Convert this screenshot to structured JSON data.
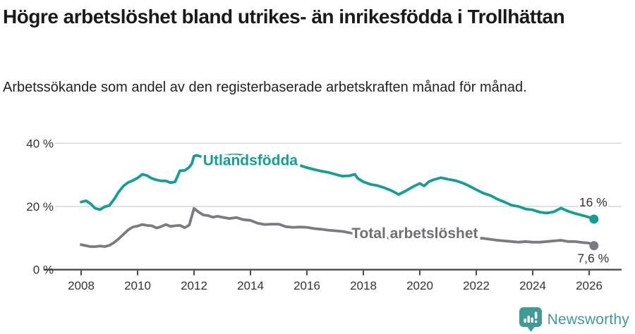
{
  "header": {
    "title": "Högre arbetslöshet bland utrikes- än inrikesfödda i Trollhättan",
    "subtitle": "Arbetssökande som andel av den registerbaserade arbetskraften månad för månad."
  },
  "footer": {
    "brand": "Newsworthy"
  },
  "colors": {
    "teal": "#10a195",
    "gray": "#7a7a80",
    "gray_label": "#6f6f75",
    "grid": "#d9d9d9",
    "axis": "#4b4b4b",
    "text": "#333333",
    "brand": "#3f9b96"
  },
  "chart_data": {
    "type": "line",
    "title": "Högre arbetslöshet bland utrikes- än inrikesfödda i Trollhättan",
    "subtitle": "Arbetssökande som andel av den registerbaserade arbetskraften månad för månad.",
    "xlabel": "",
    "ylabel": "",
    "unit": "%",
    "grid": "horizontal",
    "x_axis": {
      "range": [
        2007.95,
        2026.3
      ],
      "ticks": [
        2008,
        2010,
        2012,
        2014,
        2016,
        2018,
        2020,
        2022,
        2024,
        2026
      ]
    },
    "y_axis": {
      "range": [
        0,
        44
      ],
      "ticks": [
        0,
        20,
        40
      ],
      "labels": [
        "0 %",
        "20 %",
        "40 %"
      ]
    },
    "series": [
      {
        "name": "Utlandsfödda",
        "color": "#10a195",
        "label_color": "#10a195",
        "label_at": [
          2012.32,
          33.0
        ],
        "end_label": "16 %",
        "end_value": 16,
        "annotation_position": "above",
        "points": [
          [
            2008.0,
            21.4
          ],
          [
            2008.17,
            21.8
          ],
          [
            2008.33,
            20.9
          ],
          [
            2008.5,
            19.4
          ],
          [
            2008.67,
            19.0
          ],
          [
            2008.83,
            19.9
          ],
          [
            2009.0,
            20.3
          ],
          [
            2009.17,
            22.3
          ],
          [
            2009.33,
            24.6
          ],
          [
            2009.5,
            26.5
          ],
          [
            2009.67,
            27.6
          ],
          [
            2009.83,
            28.2
          ],
          [
            2010.0,
            29.0
          ],
          [
            2010.17,
            30.2
          ],
          [
            2010.33,
            29.8
          ],
          [
            2010.5,
            28.9
          ],
          [
            2010.67,
            28.4
          ],
          [
            2010.83,
            28.1
          ],
          [
            2011.0,
            28.1
          ],
          [
            2011.17,
            27.5
          ],
          [
            2011.33,
            27.8
          ],
          [
            2011.5,
            31.3
          ],
          [
            2011.67,
            31.4
          ],
          [
            2011.83,
            32.4
          ],
          [
            2011.92,
            33.5
          ],
          [
            2012.0,
            35.9
          ],
          [
            2012.08,
            36.2
          ],
          [
            2012.25,
            35.8
          ],
          [
            2012.5,
            35.3
          ],
          [
            2012.75,
            35.6
          ],
          [
            2013.0,
            35.9
          ],
          [
            2013.25,
            36.2
          ],
          [
            2013.5,
            36.3
          ],
          [
            2013.75,
            36.1
          ],
          [
            2014.0,
            35.9
          ],
          [
            2014.25,
            35.4
          ],
          [
            2014.5,
            35.0
          ],
          [
            2014.75,
            34.5
          ],
          [
            2015.0,
            34.1
          ],
          [
            2015.25,
            33.7
          ],
          [
            2015.5,
            33.4
          ],
          [
            2015.75,
            33.0
          ],
          [
            2016.0,
            32.3
          ],
          [
            2016.25,
            31.7
          ],
          [
            2016.5,
            31.2
          ],
          [
            2016.75,
            30.8
          ],
          [
            2017.0,
            30.2
          ],
          [
            2017.25,
            29.6
          ],
          [
            2017.5,
            29.7
          ],
          [
            2017.7,
            30.2
          ],
          [
            2017.8,
            28.9
          ],
          [
            2018.0,
            27.8
          ],
          [
            2018.25,
            27.0
          ],
          [
            2018.5,
            26.6
          ],
          [
            2018.75,
            25.9
          ],
          [
            2019.0,
            25.0
          ],
          [
            2019.25,
            23.8
          ],
          [
            2019.5,
            24.9
          ],
          [
            2019.75,
            26.2
          ],
          [
            2020.0,
            27.3
          ],
          [
            2020.15,
            26.5
          ],
          [
            2020.33,
            27.9
          ],
          [
            2020.5,
            28.5
          ],
          [
            2020.75,
            29.1
          ],
          [
            2021.0,
            28.6
          ],
          [
            2021.25,
            28.2
          ],
          [
            2021.5,
            27.5
          ],
          [
            2021.75,
            26.5
          ],
          [
            2022.0,
            25.3
          ],
          [
            2022.25,
            24.2
          ],
          [
            2022.5,
            23.5
          ],
          [
            2022.75,
            22.3
          ],
          [
            2023.0,
            21.4
          ],
          [
            2023.25,
            20.4
          ],
          [
            2023.5,
            20.0
          ],
          [
            2023.75,
            19.2
          ],
          [
            2024.0,
            18.9
          ],
          [
            2024.25,
            18.2
          ],
          [
            2024.5,
            17.9
          ],
          [
            2024.75,
            18.3
          ],
          [
            2025.0,
            19.5
          ],
          [
            2025.25,
            18.5
          ],
          [
            2025.5,
            17.8
          ],
          [
            2025.75,
            17.2
          ],
          [
            2026.0,
            16.6
          ],
          [
            2026.17,
            16.0
          ]
        ]
      },
      {
        "name": "Total arbetslöshet",
        "color": "#7a7a80",
        "label_color": "#6f6f75",
        "label_at": [
          2017.58,
          10.0
        ],
        "end_label": "7,6 %",
        "end_value": 7.6,
        "annotation_position": "below",
        "points": [
          [
            2008.0,
            7.9
          ],
          [
            2008.17,
            7.6
          ],
          [
            2008.33,
            7.3
          ],
          [
            2008.5,
            7.3
          ],
          [
            2008.67,
            7.5
          ],
          [
            2008.83,
            7.3
          ],
          [
            2009.0,
            7.7
          ],
          [
            2009.17,
            8.6
          ],
          [
            2009.33,
            9.8
          ],
          [
            2009.5,
            11.2
          ],
          [
            2009.67,
            12.6
          ],
          [
            2009.83,
            13.5
          ],
          [
            2010.0,
            13.8
          ],
          [
            2010.17,
            14.3
          ],
          [
            2010.33,
            14.0
          ],
          [
            2010.5,
            13.9
          ],
          [
            2010.67,
            13.2
          ],
          [
            2010.83,
            13.6
          ],
          [
            2011.0,
            14.3
          ],
          [
            2011.17,
            13.7
          ],
          [
            2011.33,
            13.9
          ],
          [
            2011.5,
            14.0
          ],
          [
            2011.67,
            13.3
          ],
          [
            2011.83,
            14.1
          ],
          [
            2012.0,
            19.4
          ],
          [
            2012.17,
            18.2
          ],
          [
            2012.33,
            17.3
          ],
          [
            2012.5,
            17.1
          ],
          [
            2012.67,
            16.6
          ],
          [
            2012.83,
            16.9
          ],
          [
            2013.0,
            16.6
          ],
          [
            2013.25,
            16.2
          ],
          [
            2013.5,
            16.5
          ],
          [
            2013.75,
            15.8
          ],
          [
            2014.0,
            15.6
          ],
          [
            2014.25,
            14.7
          ],
          [
            2014.5,
            14.3
          ],
          [
            2014.75,
            14.4
          ],
          [
            2015.0,
            14.4
          ],
          [
            2015.25,
            13.6
          ],
          [
            2015.5,
            13.4
          ],
          [
            2015.75,
            13.5
          ],
          [
            2016.0,
            13.4
          ],
          [
            2016.25,
            13.0
          ],
          [
            2016.5,
            12.8
          ],
          [
            2016.75,
            12.5
          ],
          [
            2017.0,
            12.3
          ],
          [
            2017.25,
            12.1
          ],
          [
            2017.5,
            11.7
          ],
          [
            2017.75,
            11.4
          ],
          [
            2018.0,
            11.2
          ],
          [
            2018.25,
            10.9
          ],
          [
            2018.5,
            10.6
          ],
          [
            2018.75,
            10.2
          ],
          [
            2019.0,
            10.0
          ],
          [
            2019.25,
            9.8
          ],
          [
            2019.5,
            10.0
          ],
          [
            2019.75,
            10.4
          ],
          [
            2020.0,
            10.9
          ],
          [
            2020.25,
            11.2
          ],
          [
            2020.5,
            11.4
          ],
          [
            2020.75,
            11.3
          ],
          [
            2021.0,
            11.1
          ],
          [
            2021.25,
            10.9
          ],
          [
            2021.5,
            10.6
          ],
          [
            2021.75,
            10.3
          ],
          [
            2022.0,
            10.1
          ],
          [
            2022.25,
            9.9
          ],
          [
            2022.5,
            9.6
          ],
          [
            2022.75,
            9.3
          ],
          [
            2023.0,
            9.1
          ],
          [
            2023.25,
            8.9
          ],
          [
            2023.5,
            8.7
          ],
          [
            2023.75,
            8.9
          ],
          [
            2024.0,
            8.7
          ],
          [
            2024.25,
            8.7
          ],
          [
            2024.5,
            8.9
          ],
          [
            2024.75,
            9.1
          ],
          [
            2025.0,
            9.3
          ],
          [
            2025.25,
            8.9
          ],
          [
            2025.5,
            8.9
          ],
          [
            2025.75,
            8.6
          ],
          [
            2026.0,
            8.4
          ],
          [
            2026.17,
            7.6
          ]
        ]
      }
    ]
  }
}
